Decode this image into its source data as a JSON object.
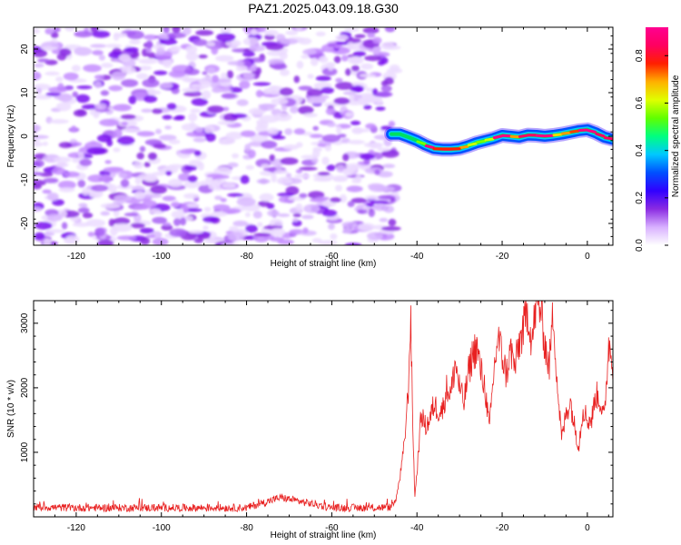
{
  "title": "PAZ1.2025.043.09.18.G30",
  "chart_data": [
    {
      "type": "heatmap",
      "xlabel": "Height of straight line (km)",
      "ylabel": "Frequency (Hz)",
      "xlim": [
        -130,
        6
      ],
      "ylim": [
        -25,
        25
      ],
      "xticks": [
        -120,
        -100,
        -80,
        -60,
        -40,
        -20,
        0
      ],
      "yticks": [
        -20,
        -10,
        0,
        10,
        20
      ],
      "colorbar": {
        "label": "Normalized spectral amplitude",
        "range": [
          0,
          0.92
        ],
        "ticks": [
          0.0,
          0.2,
          0.4,
          0.6,
          0.8
        ],
        "colormap": [
          "#ffffff",
          "#d8b0ff",
          "#8a2be2",
          "#3000ff",
          "#0050ff",
          "#00c8ff",
          "#00ff80",
          "#60ff00",
          "#e0ff00",
          "#ffb000",
          "#ff2000",
          "#ff0060",
          "#ff0090"
        ]
      },
      "noise_region": {
        "x": [
          -130,
          -45
        ],
        "y": [
          -25,
          25
        ],
        "typical_amplitude": 0.05
      },
      "signal_track": {
        "x": [
          -46,
          -44,
          -42,
          -40,
          -38,
          -36,
          -34,
          -32,
          -30,
          -28,
          -26,
          -24,
          -22,
          -20,
          -18,
          -16,
          -14,
          -12,
          -10,
          -8,
          -6,
          -4,
          -2,
          0,
          2,
          4,
          6
        ],
        "frequency": [
          0.5,
          0.5,
          -0.2,
          -1.0,
          -2.0,
          -2.8,
          -3.0,
          -3.0,
          -2.8,
          -2.2,
          -1.5,
          -1.0,
          -0.5,
          0.2,
          0.0,
          -0.2,
          0.3,
          0.2,
          0.0,
          0.2,
          0.5,
          0.9,
          1.3,
          1.5,
          0.8,
          -0.2,
          -0.7
        ],
        "peak_amplitude": [
          0.3,
          0.35,
          0.4,
          0.45,
          0.55,
          0.9,
          0.92,
          0.9,
          0.7,
          0.6,
          0.55,
          0.55,
          0.6,
          0.9,
          0.65,
          0.7,
          0.85,
          0.6,
          0.9,
          0.6,
          0.65,
          0.7,
          0.75,
          0.9,
          0.7,
          0.85,
          0.6
        ]
      },
      "grid": false
    },
    {
      "type": "line",
      "xlabel": "Height of straight line (km)",
      "ylabel": "SNR (10 * v/v)",
      "xlim": [
        -130,
        6
      ],
      "ylim": [
        0,
        3350
      ],
      "xticks": [
        -120,
        -100,
        -80,
        -60,
        -40,
        -20,
        0
      ],
      "yticks": [
        1000,
        2000,
        3000
      ],
      "line_color": "#e82020",
      "x": [
        -130,
        -120,
        -100,
        -80,
        -72,
        -60,
        -50,
        -46,
        -45,
        -44,
        -43,
        -42,
        -41.5,
        -41,
        -40.5,
        -40,
        -39,
        -38,
        -37,
        -36,
        -35,
        -34,
        -33,
        -32,
        -31,
        -30,
        -29,
        -28,
        -27,
        -26,
        -25,
        -24,
        -23,
        -22,
        -21,
        -20,
        -19,
        -18,
        -17,
        -16,
        -15,
        -14,
        -13,
        -12,
        -11,
        -10,
        -9,
        -8,
        -7,
        -6,
        -5,
        -4,
        -3,
        -2,
        -1,
        0,
        1,
        2,
        3,
        4,
        5,
        6
      ],
      "y": [
        150,
        140,
        140,
        140,
        300,
        140,
        140,
        150,
        250,
        600,
        1100,
        2000,
        3150,
        1500,
        300,
        700,
        1600,
        1400,
        1500,
        1750,
        1650,
        1650,
        2000,
        1900,
        2400,
        2000,
        1750,
        2200,
        2500,
        2650,
        2250,
        2000,
        1350,
        2200,
        2800,
        2500,
        2200,
        2600,
        2300,
        2700,
        2900,
        3200,
        2700,
        3300,
        3250,
        2700,
        2300,
        3200,
        2000,
        1200,
        1600,
        1800,
        1400,
        1100,
        1700,
        1500,
        1500,
        1900,
        1800,
        1500,
        2700,
        2400
      ],
      "grid": false
    }
  ]
}
